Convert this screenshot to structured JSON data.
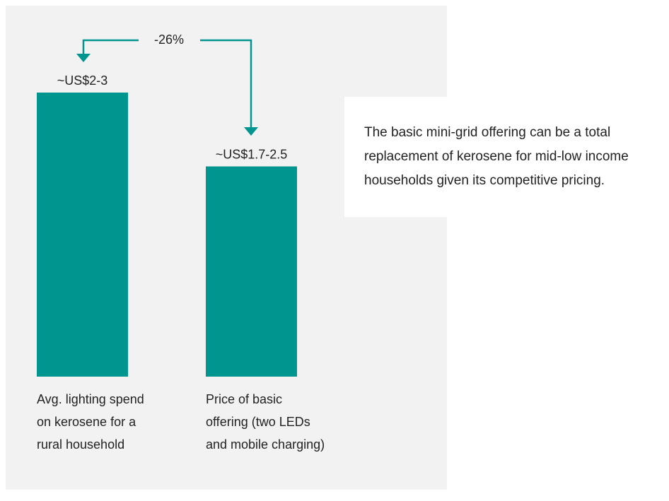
{
  "chart_data": {
    "type": "bar",
    "categories": [
      "Avg. lighting spend on kerosene for a rural household",
      "Price of basic offering (two LEDs and mobile charging)"
    ],
    "values": [
      2.5,
      1.85
    ],
    "value_labels": [
      "~US$2-3",
      "~US$1.7-2.5"
    ],
    "color": "#00958f",
    "annotation": "-26%",
    "note": "The basic mini-grid offering can be a total replacement of kerosene for mid-low income households given its competitive pricing."
  }
}
